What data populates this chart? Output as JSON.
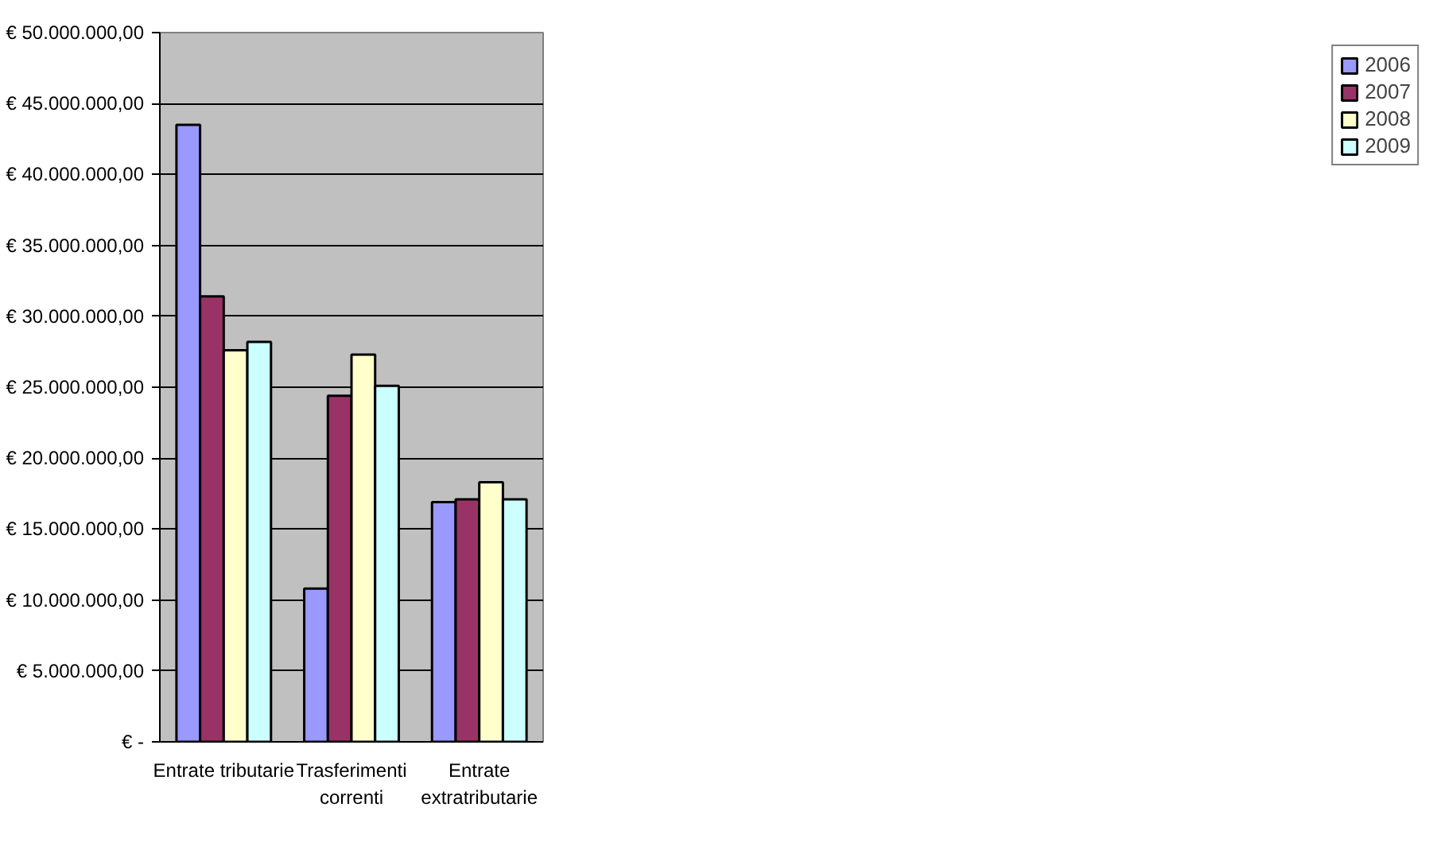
{
  "chart_data": {
    "type": "bar",
    "categories": [
      "Entrate tributarie",
      "Trasferimenti\ncorrenti",
      "Entrate\nextratributarie"
    ],
    "series": [
      {
        "name": "2006",
        "color": "#9999ff",
        "values": [
          43500000,
          10800000,
          16900000
        ]
      },
      {
        "name": "2007",
        "color": "#993366",
        "values": [
          31400000,
          24400000,
          17100000
        ]
      },
      {
        "name": "2008",
        "color": "#ffffcc",
        "values": [
          27600000,
          27300000,
          18300000
        ]
      },
      {
        "name": "2009",
        "color": "#ccffff",
        "values": [
          28200000,
          25100000,
          17100000
        ]
      }
    ],
    "ylim": [
      0,
      50000000
    ],
    "yticks": [
      {
        "value": 0,
        "label": "€ -"
      },
      {
        "value": 5000000,
        "label": "€ 5.000.000,00"
      },
      {
        "value": 10000000,
        "label": "€ 10.000.000,00"
      },
      {
        "value": 15000000,
        "label": "€ 15.000.000,00"
      },
      {
        "value": 20000000,
        "label": "€ 20.000.000,00"
      },
      {
        "value": 25000000,
        "label": "€ 25.000.000,00"
      },
      {
        "value": 30000000,
        "label": "€ 30.000.000,00"
      },
      {
        "value": 35000000,
        "label": "€ 35.000.000,00"
      },
      {
        "value": 40000000,
        "label": "€ 40.000.000,00"
      },
      {
        "value": 45000000,
        "label": "€ 45.000.000,00"
      },
      {
        "value": 50000000,
        "label": "€ 50.000.000,00"
      }
    ],
    "grid": "y",
    "legend": "right"
  }
}
